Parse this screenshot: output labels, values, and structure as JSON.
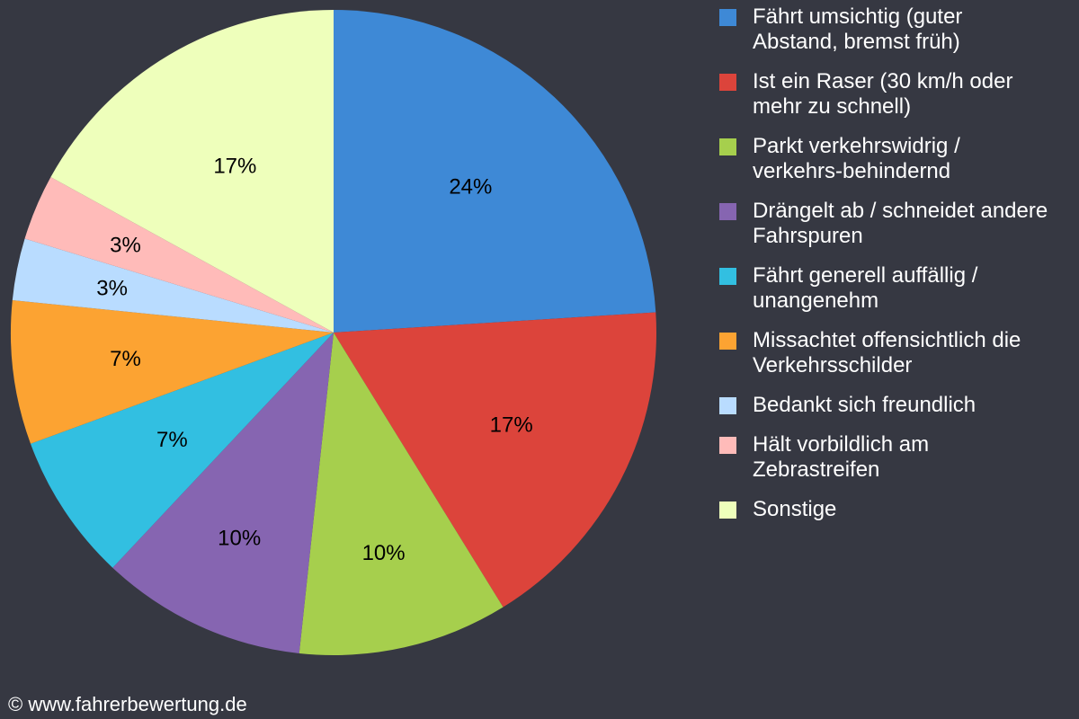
{
  "chart_data": {
    "type": "pie",
    "title": "",
    "start_angle_deg": 0,
    "direction": "clockwise",
    "categories": [
      "Fährt umsichtig (guter Abstand, bremst früh)",
      "Ist ein Raser (30 km/h oder mehr zu schnell)",
      "Parkt verkehrswidrig / verkehrs-behindernd",
      "Drängelt ab / schneidet andere Fahrspuren",
      "Fährt generell auffällig / unangenehm",
      "Missachtet offensichtlich die Verkehrsschilder",
      "Bedankt sich freundlich",
      "Hält vorbildlich am Zebrastreifen",
      "Sonstige"
    ],
    "values": [
      24,
      17,
      10,
      10,
      7,
      7,
      3,
      3,
      17
    ],
    "angle_shares": [
      24.0,
      17.2,
      10.5,
      10.3,
      7.4,
      7.2,
      3.1,
      3.3,
      17.0
    ],
    "labels": [
      "24%",
      "17%",
      "10%",
      "10%",
      "7%",
      "7%",
      "3%",
      "3%",
      "17%"
    ],
    "colors": [
      "#3e89d6",
      "#dc443b",
      "#a6cf4d",
      "#8665b1",
      "#32bfe1",
      "#fca332",
      "#b9dcff",
      "#ffbbb9",
      "#eeffbb"
    ],
    "legend_position": "right"
  },
  "legend": {
    "items": [
      {
        "line1": "Fährt umsichtig (guter",
        "line2": "Abstand, bremst früh)"
      },
      {
        "line1": "Ist ein Raser (30 km/h oder",
        "line2": "mehr zu schnell)"
      },
      {
        "line1": "Parkt verkehrswidrig /",
        "line2": "verkehrs-behindernd"
      },
      {
        "line1": "Drängelt ab / schneidet andere",
        "line2": "Fahrspuren"
      },
      {
        "line1": "Fährt generell auffällig /",
        "line2": "unangenehm"
      },
      {
        "line1": "Missachtet offensichtlich die",
        "line2": "Verkehrsschilder"
      },
      {
        "line1": "Bedankt sich freundlich",
        "line2": ""
      },
      {
        "line1": "Hält vorbildlich am",
        "line2": "Zebrastreifen"
      },
      {
        "line1": "Sonstige",
        "line2": ""
      }
    ]
  },
  "footer": {
    "copyright": "© www.fahrerbewertung.de"
  },
  "colors": {
    "background": "#363842",
    "text": "#ffffff"
  }
}
